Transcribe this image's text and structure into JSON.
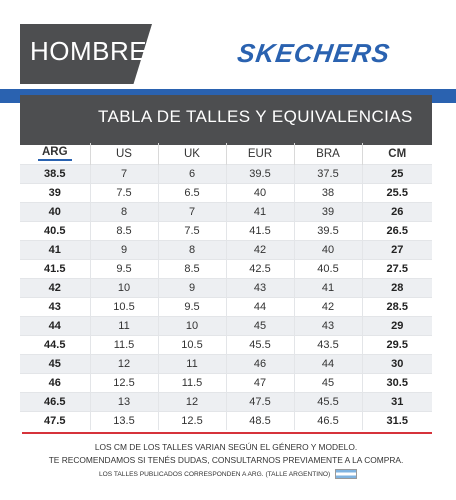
{
  "header": {
    "category": "HOMBRE",
    "brand": "SKECHERS",
    "accent_blue": "#2a62b0",
    "panel_gray": "#4d4e50"
  },
  "table": {
    "title": "TABLA DE TALLES Y EQUIVALENCIAS",
    "columns": [
      "ARG",
      "US",
      "UK",
      "EUR",
      "BRA",
      "CM"
    ],
    "rows": [
      [
        "38.5",
        "7",
        "6",
        "39.5",
        "37.5",
        "25"
      ],
      [
        "39",
        "7.5",
        "6.5",
        "40",
        "38",
        "25.5"
      ],
      [
        "40",
        "8",
        "7",
        "41",
        "39",
        "26"
      ],
      [
        "40.5",
        "8.5",
        "7.5",
        "41.5",
        "39.5",
        "26.5"
      ],
      [
        "41",
        "9",
        "8",
        "42",
        "40",
        "27"
      ],
      [
        "41.5",
        "9.5",
        "8.5",
        "42.5",
        "40.5",
        "27.5"
      ],
      [
        "42",
        "10",
        "9",
        "43",
        "41",
        "28"
      ],
      [
        "43",
        "10.5",
        "9.5",
        "44",
        "42",
        "28.5"
      ],
      [
        "44",
        "11",
        "10",
        "45",
        "43",
        "29"
      ],
      [
        "44.5",
        "11.5",
        "10.5",
        "45.5",
        "43.5",
        "29.5"
      ],
      [
        "45",
        "12",
        "11",
        "46",
        "44",
        "30"
      ],
      [
        "46",
        "12.5",
        "11.5",
        "47",
        "45",
        "30.5"
      ],
      [
        "46.5",
        "13",
        "12",
        "47.5",
        "45.5",
        "31"
      ],
      [
        "47.5",
        "13.5",
        "12.5",
        "48.5",
        "46.5",
        "31.5"
      ]
    ]
  },
  "footer": {
    "line1": "LOS CM DE LOS TALLES VARIAN SEGÚN EL GÉNERO Y MODELO.",
    "line2": "TE RECOMENDAMOS SI TENÉS DUDAS, CONSULTARNOS PREVIAMENTE A LA COMPRA.",
    "line3": "LOS TALLES PUBLICADOS CORRESPONDEN A ARG. (TALLE ARGENTINO)",
    "flag_icon": "argentina-flag-icon"
  }
}
